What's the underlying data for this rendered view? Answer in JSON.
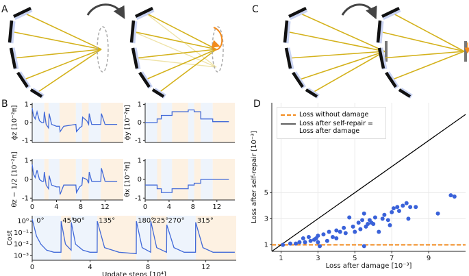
{
  "panel_labels": [
    "A",
    "B",
    "C",
    "D"
  ],
  "chart_data": [
    {
      "type": "line",
      "ylabel": "ϕz [10⁻²π]",
      "xlim": [
        0,
        15
      ],
      "ylim": [
        -1.1,
        1.1
      ],
      "yticks": [
        -1,
        0,
        1
      ],
      "shading": true,
      "x": [
        0,
        0.2,
        0.5,
        0.8,
        1.2,
        1.6,
        1.9,
        2.0,
        2.3,
        2.7,
        2.8,
        3.2,
        4.0,
        4.5,
        4.6,
        5.2,
        7.2,
        7.3,
        7.8,
        8.2,
        8.3,
        9.0,
        9.3,
        9.4,
        9.8,
        11.3,
        11.4,
        12.0,
        14.0
      ],
      "series": [
        {
          "color": "#4169d8",
          "values": [
            0.8,
            0.4,
            0.2,
            0.6,
            0.1,
            0.0,
            0.0,
            0.6,
            -0.1,
            -0.3,
            0.5,
            -0.1,
            -0.2,
            -0.2,
            -0.5,
            -0.2,
            -0.1,
            -0.5,
            -0.3,
            -0.2,
            0.3,
            0.1,
            -0.1,
            0.5,
            -0.1,
            -0.1,
            0.5,
            -0.1,
            -0.1
          ]
        }
      ]
    },
    {
      "type": "line",
      "ylabel": "ϕy [10⁻²π]",
      "xlim": [
        0,
        15
      ],
      "ylim": [
        -1.1,
        1.1
      ],
      "yticks": [
        -1,
        0,
        1
      ],
      "shading": true,
      "x": [
        0,
        2,
        2,
        2.7,
        2.7,
        4.5,
        4.5,
        7.2,
        7.2,
        8.2,
        8.2,
        9.3,
        9.3,
        11.3,
        11.3,
        14
      ],
      "series": [
        {
          "color": "#4169d8",
          "values": [
            0,
            0,
            0.2,
            0.2,
            0.4,
            0.4,
            0.6,
            0.6,
            0.7,
            0.7,
            0.6,
            0.6,
            0.2,
            0.2,
            0.05,
            0.05
          ]
        }
      ]
    },
    {
      "type": "line",
      "ylabel": "θz − 1/2 [10⁻²π]",
      "xlim": [
        0,
        15
      ],
      "ylim": [
        -1.1,
        1.1
      ],
      "yticks": [
        -1,
        0,
        1
      ],
      "xticks": [
        0,
        4,
        8,
        12
      ],
      "shading": true,
      "x": [
        0,
        0.2,
        0.5,
        0.8,
        1.2,
        1.6,
        1.9,
        2.0,
        2.3,
        2.7,
        2.8,
        3.2,
        4.0,
        4.5,
        4.6,
        5.2,
        7.2,
        7.3,
        7.8,
        8.2,
        8.3,
        9.0,
        9.3,
        9.4,
        9.8,
        11.3,
        11.4,
        12.0,
        14.0
      ],
      "series": [
        {
          "color": "#4169d8",
          "values": [
            0.8,
            0.3,
            0.1,
            0.5,
            0.0,
            -0.1,
            -0.1,
            0.4,
            -0.3,
            -0.5,
            0.2,
            -0.3,
            -0.4,
            -0.4,
            -0.8,
            -0.3,
            -0.3,
            -0.7,
            -0.4,
            -0.3,
            0.1,
            0.0,
            -0.2,
            0.4,
            -0.1,
            -0.1,
            0.6,
            -0.1,
            -0.1
          ]
        }
      ]
    },
    {
      "type": "line",
      "ylabel": "θx [10⁻²π]",
      "xlim": [
        0,
        15
      ],
      "ylim": [
        -1.1,
        1.1
      ],
      "yticks": [
        -1,
        0,
        1
      ],
      "xticks": [
        0,
        4,
        8,
        12
      ],
      "shading": true,
      "x": [
        0,
        2,
        2,
        2.7,
        2.7,
        4.5,
        4.5,
        7.2,
        7.2,
        8.2,
        8.2,
        9.3,
        9.3,
        11.3,
        11.3,
        14
      ],
      "series": [
        {
          "color": "#4169d8",
          "values": [
            -0.3,
            -0.3,
            -0.5,
            -0.5,
            -0.7,
            -0.7,
            -0.5,
            -0.5,
            -0.3,
            -0.3,
            -0.2,
            -0.2,
            0,
            0,
            0,
            0
          ]
        }
      ]
    },
    {
      "type": "line",
      "ylabel": "Cost",
      "xlabel": "Update steps [10⁴]",
      "log_y": true,
      "xlim": [
        0,
        14.1
      ],
      "ylim": [
        0.0004,
        3
      ],
      "shading": true,
      "yticks": [
        {
          "value": 0.001,
          "label": "10⁻³"
        },
        {
          "value": 0.01,
          "label": "10⁻²"
        },
        {
          "value": 0.1,
          "label": "10⁻¹"
        },
        {
          "value": 1,
          "label": "10⁰"
        }
      ],
      "xticks": [
        0,
        4,
        8,
        12
      ],
      "annotations": [
        {
          "text": "0°",
          "x": 0.2
        },
        {
          "text": "45°",
          "x": 2.0
        },
        {
          "text": "90°",
          "x": 2.7
        },
        {
          "text": "135°",
          "x": 4.5
        },
        {
          "text": "180°",
          "x": 7.2
        },
        {
          "text": "225°",
          "x": 8.2
        },
        {
          "text": "270°",
          "x": 9.3
        },
        {
          "text": "315°",
          "x": 11.3
        }
      ],
      "x": [
        0,
        0.3,
        0.6,
        1.0,
        1.5,
        1.99,
        2.0,
        2.3,
        2.69,
        2.7,
        3.0,
        3.5,
        4.0,
        4.49,
        4.5,
        5.0,
        6.0,
        7.19,
        7.2,
        7.6,
        8.19,
        8.2,
        8.6,
        9.29,
        9.3,
        9.8,
        10.5,
        11.29,
        11.3,
        11.8,
        12.5,
        14.0
      ],
      "series": [
        {
          "color": "#4169d8",
          "values": [
            1.5,
            0.05,
            0.01,
            0.003,
            0.002,
            0.002,
            1.0,
            0.01,
            0.003,
            0.8,
            0.01,
            0.003,
            0.002,
            0.002,
            1.0,
            0.005,
            0.002,
            0.0015,
            1.0,
            0.005,
            0.002,
            1.0,
            0.005,
            0.002,
            0.5,
            0.005,
            0.002,
            0.002,
            0.8,
            0.005,
            0.002,
            0.002
          ]
        }
      ]
    },
    {
      "type": "scatter",
      "xlabel": "Loss after damage [10⁻³]",
      "ylabel": "Loss after self-repair [10⁻³]",
      "grid": true,
      "xlim": [
        0.5,
        11
      ],
      "ylim": [
        0.5,
        11.9
      ],
      "xticks": [
        1,
        3,
        5,
        7,
        9
      ],
      "yticks": [
        1,
        3,
        5
      ],
      "color": "#3a62d9",
      "x": [
        1.1,
        1.5,
        1.8,
        2.0,
        2.2,
        2.3,
        2.5,
        2.6,
        2.8,
        3.0,
        3.0,
        3.1,
        3.3,
        3.6,
        3.8,
        4.0,
        4.2,
        4.4,
        4.5,
        4.7,
        4.9,
        5.0,
        5.2,
        5.3,
        5.4,
        5.5,
        5.5,
        5.6,
        5.7,
        5.8,
        5.9,
        6.0,
        6.1,
        6.3,
        6.5,
        6.6,
        6.8,
        7.0,
        7.1,
        7.3,
        7.4,
        7.6,
        7.8,
        7.9,
        8.0,
        8.3,
        9.5,
        10.2,
        10.4,
        6.9,
        4.0,
        3.5,
        2.9
      ],
      "values": [
        1.0,
        1.1,
        1.1,
        1.2,
        1.5,
        1.2,
        1.6,
        1.3,
        1.4,
        1.7,
        1.2,
        0.9,
        1.8,
        2.0,
        1.6,
        2.1,
        2.0,
        2.3,
        1.9,
        3.1,
        2.4,
        2.0,
        2.7,
        2.2,
        2.9,
        3.4,
        0.9,
        2.4,
        2.6,
        2.9,
        2.7,
        2.6,
        3.1,
        2.0,
        3.0,
        3.3,
        2.9,
        3.5,
        3.8,
        3.9,
        3.6,
        4.0,
        4.2,
        3.0,
        3.9,
        3.9,
        3.4,
        4.8,
        4.7,
        2.5,
        1.5,
        1.3,
        1.5
      ],
      "legend": "upper left",
      "lines": [
        {
          "name": "Loss without damage",
          "color": "#f28a1c",
          "dash": true,
          "x": [
            0.5,
            11
          ],
          "values": [
            1,
            1
          ]
        },
        {
          "name": "Loss after self-repair = Loss after damage",
          "color": "#000000",
          "x": [
            0.5,
            11
          ],
          "values": [
            0.5,
            11
          ]
        }
      ]
    }
  ]
}
